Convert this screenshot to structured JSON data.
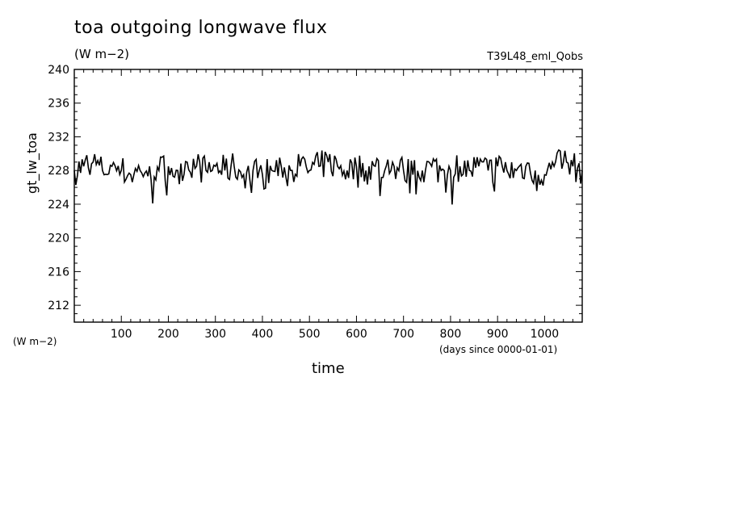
{
  "chart_data": {
    "type": "line",
    "title": "toa outgoing longwave flux",
    "subtitle": "(W m−2)",
    "experiment_label": "T39L48_eml_Qobs",
    "xlabel": "time",
    "x_origin_note": "(days since 0000-01-01)",
    "ylabel": "gt_lw_toa",
    "y_units": "(W m−2)",
    "xlim": [
      0,
      1080
    ],
    "ylim": [
      210,
      240
    ],
    "xticks": [
      100,
      200,
      300,
      400,
      500,
      600,
      700,
      800,
      900,
      1000
    ],
    "yticks": [
      212,
      216,
      220,
      224,
      228,
      232,
      236,
      240
    ],
    "grid": false,
    "series": [
      {
        "x": [
          0,
          20,
          40,
          60,
          80,
          100,
          120,
          140,
          160,
          180,
          200,
          220,
          240,
          260,
          280,
          300,
          320,
          340,
          360,
          380,
          400,
          420,
          440,
          460,
          480,
          500,
          520,
          540,
          560,
          580,
          600,
          620,
          640,
          660,
          680,
          700,
          720,
          740,
          760,
          780,
          800,
          820,
          840,
          860,
          880,
          900,
          920,
          940,
          960,
          980,
          1000,
          1020,
          1040,
          1060,
          1080
        ],
        "values": [
          228,
          228.5,
          229,
          228,
          228.5,
          228,
          227.5,
          228,
          228.5,
          228,
          228.5,
          228,
          229,
          228.5,
          228,
          228.5,
          228,
          228.5,
          227.5,
          228,
          227.5,
          228,
          228.5,
          228,
          228.5,
          228,
          228.5,
          229,
          228.5,
          228,
          228.5,
          228,
          228.5,
          228,
          228.5,
          228,
          227.5,
          228,
          228.5,
          228,
          228,
          228.5,
          228,
          228.5,
          228,
          228.5,
          228,
          228,
          228.5,
          228,
          227.5,
          228.5,
          229,
          228.5,
          228
        ]
      }
    ]
  }
}
